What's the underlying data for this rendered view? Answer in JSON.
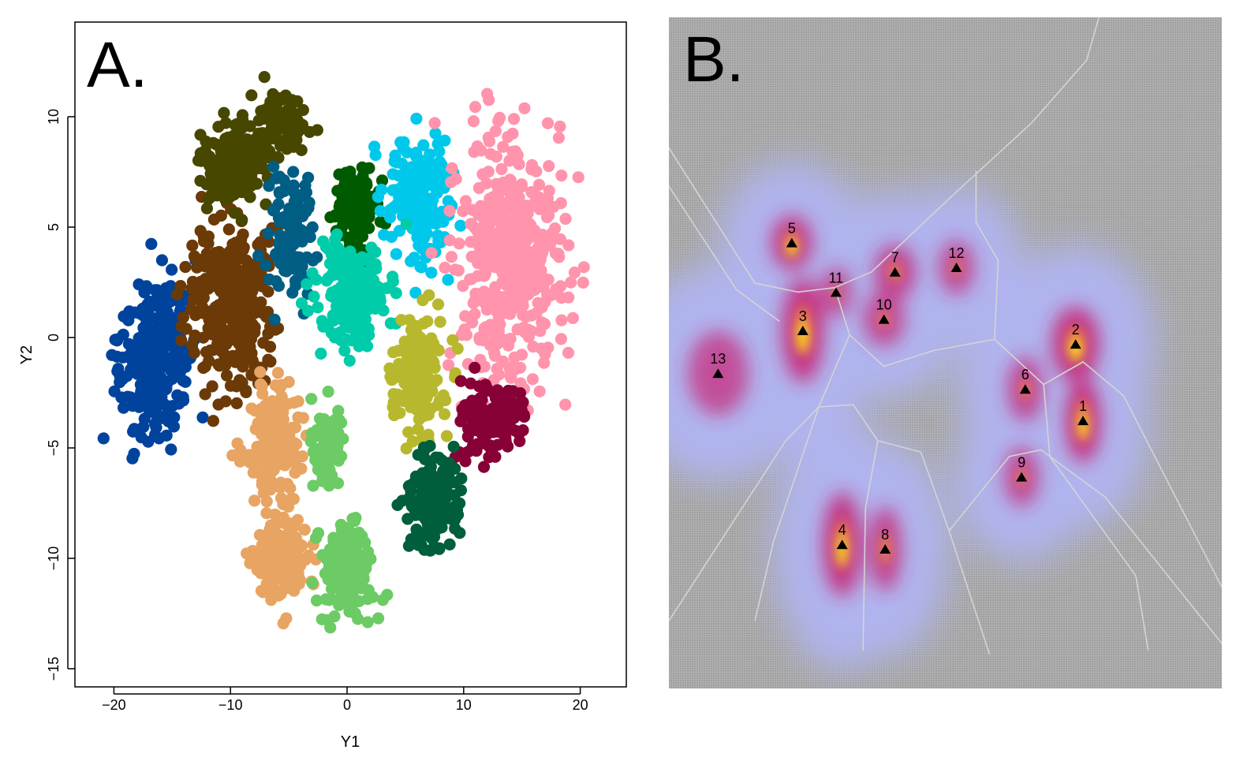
{
  "chart_data": [
    {
      "panel": "A.",
      "type": "scatter",
      "xlabel": "Y1",
      "ylabel": "Y2",
      "xlim": [
        -23.5,
        21.5
      ],
      "ylim": [
        -15.5,
        14.3
      ],
      "xticks": [
        -20,
        -10,
        0,
        10,
        20
      ],
      "yticks": [
        -15,
        -10,
        -5,
        0,
        5,
        10
      ],
      "xtick_labels": [
        "−20",
        "−10",
        "0",
        "10",
        "20"
      ],
      "ytick_labels": [
        "−15",
        "−10",
        "−5",
        "0",
        "5",
        "10"
      ],
      "series": [
        {
          "color": "#00439C",
          "center": [
            -16.5,
            -1.0
          ],
          "spread": [
            2.8,
            3.2
          ],
          "points": 260,
          "seed": 11
        },
        {
          "color": "#6B3A07",
          "center": [
            -9.8,
            1.6
          ],
          "spread": [
            3.0,
            3.3
          ],
          "points": 340,
          "seed": 12
        },
        {
          "color": "#474700",
          "center": [
            -9.8,
            7.8
          ],
          "spread": [
            2.6,
            1.6
          ],
          "points": 200,
          "seed": 13
        },
        {
          "color": "#474700",
          "center": [
            -5.5,
            9.8
          ],
          "spread": [
            1.9,
            1.3
          ],
          "points": 80,
          "seed": 14
        },
        {
          "color": "#005E85",
          "center": [
            -4.8,
            4.6
          ],
          "spread": [
            1.7,
            2.6
          ],
          "points": 120,
          "seed": 15
        },
        {
          "color": "#005A00",
          "center": [
            0.8,
            5.9
          ],
          "spread": [
            1.6,
            1.6
          ],
          "points": 140,
          "seed": 16
        },
        {
          "color": "#00C8EB",
          "center": [
            6.4,
            6.2
          ],
          "spread": [
            2.6,
            2.4
          ],
          "points": 190,
          "seed": 17
        },
        {
          "color": "#FF94AC",
          "center": [
            13.8,
            3.4
          ],
          "spread": [
            4.2,
            4.6
          ],
          "points": 480,
          "seed": 18
        },
        {
          "color": "#00CCAA",
          "center": [
            0.4,
            1.9
          ],
          "spread": [
            2.6,
            2.3
          ],
          "points": 190,
          "seed": 19
        },
        {
          "color": "#B8B82E",
          "center": [
            6.1,
            -1.7
          ],
          "spread": [
            2.1,
            2.4
          ],
          "points": 170,
          "seed": 20
        },
        {
          "color": "#870036",
          "center": [
            12.3,
            -3.6
          ],
          "spread": [
            2.6,
            1.6
          ],
          "points": 170,
          "seed": 21
        },
        {
          "color": "#005E3C",
          "center": [
            7.3,
            -7.3
          ],
          "spread": [
            2.0,
            1.8
          ],
          "points": 150,
          "seed": 22
        },
        {
          "color": "#E8A462",
          "center": [
            -6.2,
            -4.8
          ],
          "spread": [
            2.4,
            2.5
          ],
          "points": 160,
          "seed": 23
        },
        {
          "color": "#E8A462",
          "center": [
            -5.6,
            -10.2
          ],
          "spread": [
            2.2,
            1.9
          ],
          "points": 170,
          "seed": 24
        },
        {
          "color": "#6CCB64",
          "center": [
            -1.6,
            -4.9
          ],
          "spread": [
            1.2,
            1.5
          ],
          "points": 70,
          "seed": 25
        },
        {
          "color": "#6CCB64",
          "center": [
            0.2,
            -10.4
          ],
          "spread": [
            2.2,
            2.0
          ],
          "points": 170,
          "seed": 26
        }
      ]
    },
    {
      "panel": "B.",
      "type": "heatmap",
      "xlim": [
        -23.5,
        21.5
      ],
      "ylim": [
        -15.5,
        14.3
      ],
      "colors": {
        "background": "#A0A0A0",
        "grid": "#B4B4B4",
        "density_low": "#B0B4EE",
        "density_mid": "#C8287A",
        "density_high": "#FFEA00",
        "boundary": "#D4D4D4",
        "marker": "#000000"
      },
      "peaks": [
        {
          "label": "1",
          "x": 10.2,
          "y": -3.6,
          "weight": 1.0,
          "sx": 1.1,
          "sy": 1.7
        },
        {
          "label": "2",
          "x": 9.6,
          "y": -0.2,
          "weight": 0.92,
          "sx": 1.5,
          "sy": 1.5
        },
        {
          "label": "3",
          "x": -12.6,
          "y": 0.4,
          "weight": 0.95,
          "sx": 1.3,
          "sy": 2.1
        },
        {
          "label": "4",
          "x": -9.4,
          "y": -9.1,
          "weight": 0.92,
          "sx": 1.2,
          "sy": 2.1
        },
        {
          "label": "5",
          "x": -13.5,
          "y": 4.3,
          "weight": 0.82,
          "sx": 1.3,
          "sy": 1.1
        },
        {
          "label": "6",
          "x": 5.5,
          "y": -2.2,
          "weight": 0.62,
          "sx": 1.1,
          "sy": 1.3
        },
        {
          "label": "7",
          "x": -5.1,
          "y": 3.0,
          "weight": 0.68,
          "sx": 1.3,
          "sy": 1.1
        },
        {
          "label": "8",
          "x": -5.9,
          "y": -9.3,
          "weight": 0.75,
          "sx": 1.0,
          "sy": 1.7
        },
        {
          "label": "9",
          "x": 5.2,
          "y": -6.1,
          "weight": 0.55,
          "sx": 1.1,
          "sy": 1.2
        },
        {
          "label": "10",
          "x": -6.0,
          "y": 0.9,
          "weight": 0.55,
          "sx": 1.3,
          "sy": 1.1
        },
        {
          "label": "11",
          "x": -9.9,
          "y": 2.1,
          "weight": 0.5,
          "sx": 1.0,
          "sy": 1.0
        },
        {
          "label": "12",
          "x": -0.1,
          "y": 3.2,
          "weight": 0.55,
          "sx": 1.1,
          "sy": 1.1
        },
        {
          "label": "13",
          "x": -19.5,
          "y": -1.5,
          "weight": 0.45,
          "sx": 1.9,
          "sy": 1.7
        }
      ],
      "boundaries": [
        [
          [
            -23.5,
            8.5
          ],
          [
            -16.5,
            2.5
          ],
          [
            -13.0,
            2.1
          ]
        ],
        [
          [
            -23.5,
            6.8
          ],
          [
            -18.0,
            2.2
          ],
          [
            -14.5,
            0.8
          ]
        ],
        [
          [
            -13.0,
            2.1
          ],
          [
            -10.0,
            2.3
          ],
          [
            -8.8,
            0.2
          ]
        ],
        [
          [
            -10.0,
            2.3
          ],
          [
            -7.0,
            3.0
          ],
          [
            -0.2,
            6.5
          ],
          [
            6.0,
            9.6
          ],
          [
            10.5,
            12.4
          ],
          [
            11.5,
            14.3
          ]
        ],
        [
          [
            -8.8,
            0.2
          ],
          [
            -6.0,
            -1.2
          ],
          [
            -2.0,
            -0.5
          ],
          [
            3.0,
            0.0
          ],
          [
            7.0,
            -2.0
          ]
        ],
        [
          [
            3.0,
            0.0
          ],
          [
            3.3,
            3.5
          ],
          [
            1.5,
            5.2
          ],
          [
            1.5,
            7.5
          ]
        ],
        [
          [
            -8.8,
            0.2
          ],
          [
            -11.3,
            -3.0
          ],
          [
            -14.0,
            -4.5
          ],
          [
            -23.5,
            -12.5
          ]
        ],
        [
          [
            -11.3,
            -3.0
          ],
          [
            -8.5,
            -2.9
          ],
          [
            -6.5,
            -4.5
          ],
          [
            -7.5,
            -7.5
          ],
          [
            -7.7,
            -13.8
          ]
        ],
        [
          [
            -6.5,
            -4.5
          ],
          [
            -3.0,
            -5.0
          ],
          [
            -0.7,
            -8.5
          ],
          [
            2.6,
            -14.0
          ]
        ],
        [
          [
            -0.7,
            -8.5
          ],
          [
            4.2,
            -5.2
          ],
          [
            6.8,
            -4.9
          ],
          [
            7.5,
            -5.2
          ],
          [
            12.0,
            -7.0
          ],
          [
            21.5,
            -13.5
          ]
        ],
        [
          [
            7.0,
            -2.0
          ],
          [
            7.5,
            -5.2
          ]
        ],
        [
          [
            7.0,
            -2.0
          ],
          [
            10.2,
            -1.0
          ],
          [
            13.5,
            -2.5
          ],
          [
            21.5,
            -11.0
          ]
        ],
        [
          [
            -11.3,
            -3.0
          ],
          [
            -15.0,
            -9.0
          ],
          [
            -16.5,
            -12.5
          ]
        ],
        [
          [
            7.5,
            -5.2
          ],
          [
            14.5,
            -10.5
          ],
          [
            15.5,
            -13.8
          ]
        ]
      ]
    }
  ]
}
